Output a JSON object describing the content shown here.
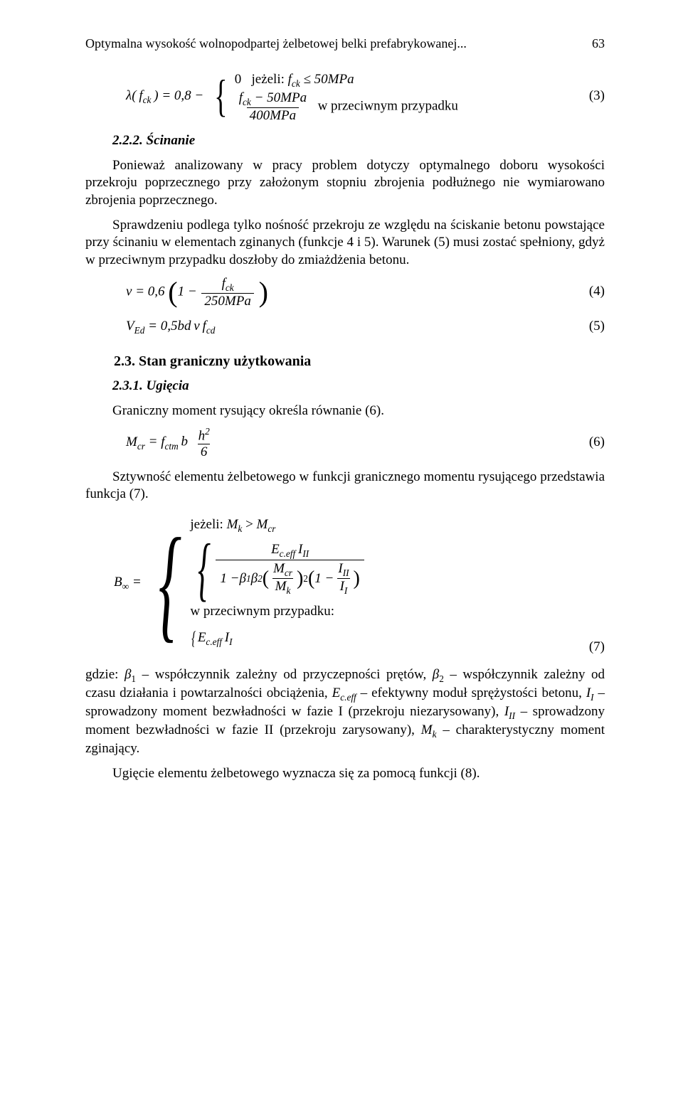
{
  "runningHead": {
    "title": "Optymalna wysokość wolnopodpartej żelbetowej belki prefabrykowanej...",
    "pageNumber": "63"
  },
  "eq3": {
    "lhs": "λ( f_{ck} ) = 0,8 −",
    "case1": "0   jeżeli: f_{ck} ≤ 50MPa",
    "case2_num": "f_{ck} − 50MPa",
    "case2_den": "400MPa",
    "case2_tail": " w przeciwnym przypadku",
    "num": "(3)"
  },
  "sec222": {
    "heading": "2.2.2. Ścinanie",
    "p1": "Ponieważ analizowany w pracy problem dotyczy optymalnego doboru wysokości przekroju poprzecznego przy założonym stopniu zbrojenia podłużnego nie wymiarowano zbrojenia poprzecznego.",
    "p2": "Sprawdzeniu podlega tylko nośność przekroju ze względu na ściskanie betonu powstające przy ścinaniu w elementach zginanych (funkcje 4 i 5). Warunek (5) musi zostać spełniony, gdyż w przeciwnym przypadku doszłoby do zmiażdżenia betonu."
  },
  "eq4": {
    "lhs_a": "ν = 0,6",
    "frac_num": "f_{ck}",
    "frac_den": "250MPa",
    "num": "(4)"
  },
  "eq5": {
    "body": "V_{Ed} = 0,5 b d ν f_{cd}",
    "num": "(5)"
  },
  "sec23": {
    "heading": "2.3. Stan graniczny użytkowania"
  },
  "sec231": {
    "heading": "2.3.1. Ugięcia",
    "p1": "Graniczny moment rysujący określa równanie (6)."
  },
  "eq6": {
    "lhs": "M_{cr} = f_{ctm} b ",
    "frac_num": "h²",
    "frac_den": "6",
    "num": "(6)"
  },
  "p_after6": "Sztywność elementu żelbetowego w funkcji granicznego momentu rysującego przedstawia funkcja (7).",
  "eq7": {
    "lhs": "B_{∞} =",
    "cond1": "jeżeli: M_{k} > M_{cr}",
    "EI_top": "E_{c.eff} I_{II}",
    "den_lead": "1 − β₁β₂",
    "Mcr": "M_{cr}",
    "Mk": "M_{k}",
    "III_num": "I_{II}",
    "III_den": "I_{I}",
    "cond2": "w przeciwnym przypadku:",
    "alt": "E_{c.eff} I_{I}",
    "num": "(7)"
  },
  "p_after7": "gdzie: β₁ – współczynnik zależny od przyczepności prętów, β₂ – współczynnik zależny od czasu działania i powtarzalności obciążenia, E_{c.eff} – efektywny moduł sprężystości betonu, I_{I} – sprowadzony moment bezwładności w fazie I (przekroju niezarysowany), I_{II} – sprowadzony moment bezwładności w fazie II (przekroju zarysowany), M_{k} – charakterystyczny moment zginający.",
  "p_last": "Ugięcie elementu żelbetowego wyznacza się za pomocą funkcji (8)."
}
